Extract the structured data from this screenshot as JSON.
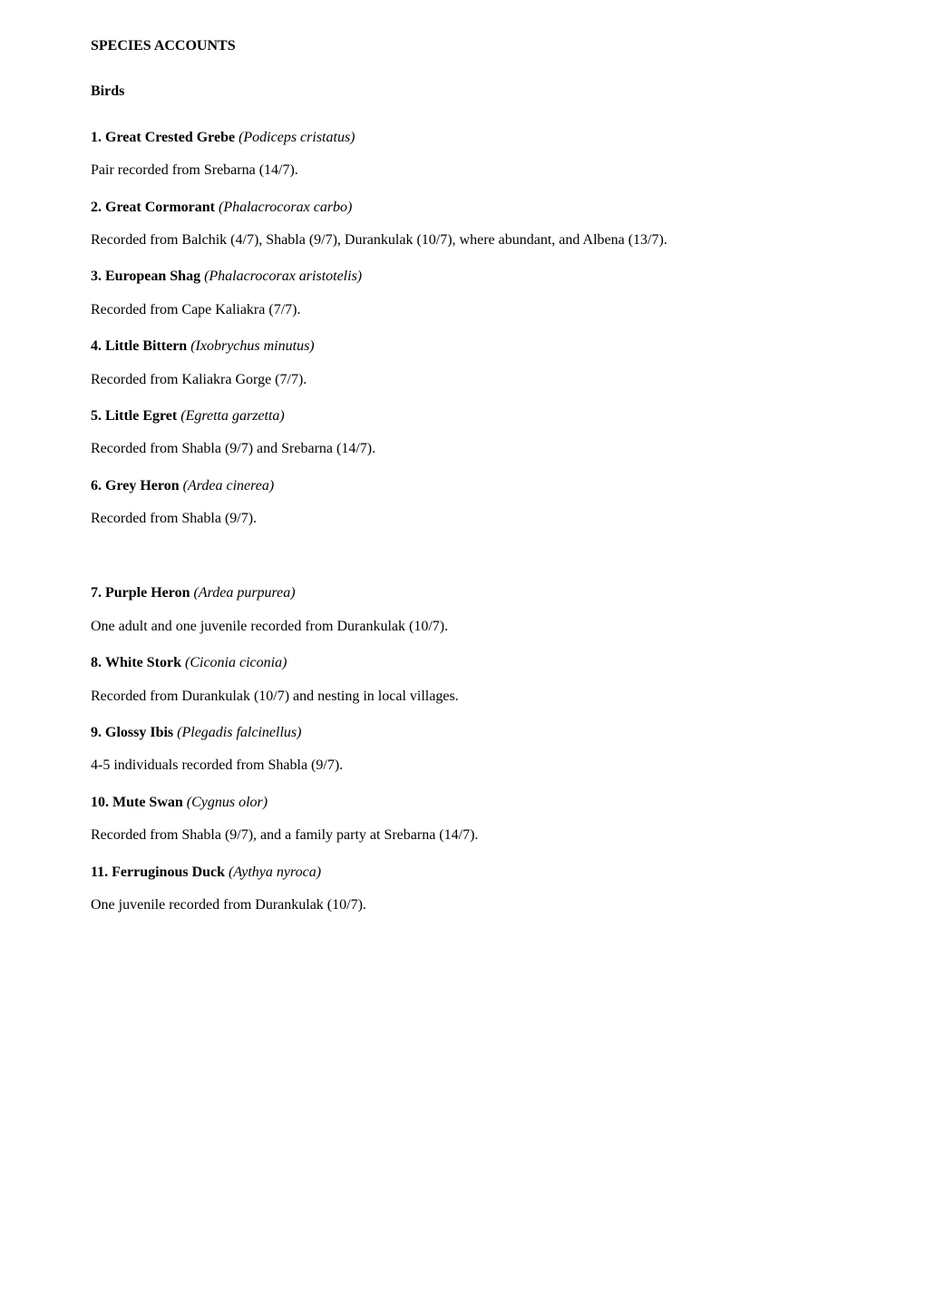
{
  "title": "SPECIES ACCOUNTS",
  "subsection": "Birds",
  "species": [
    {
      "num": "1.",
      "common": "Great Crested Grebe",
      "latin": "(Podiceps cristatus)",
      "desc": "Pair recorded from Srebarna (14/7)."
    },
    {
      "num": "2.",
      "common": "Great Cormorant",
      "latin": "(Phalacrocorax carbo)",
      "desc": "Recorded from Balchik (4/7), Shabla (9/7), Durankulak (10/7), where abundant, and Albena (13/7)."
    },
    {
      "num": "3.",
      "common": "European Shag",
      "latin": "(Phalacrocorax aristotelis)",
      "desc": "Recorded from Cape Kaliakra (7/7)."
    },
    {
      "num": "4.",
      "common": "Little Bittern",
      "latin": "(Ixobrychus minutus)",
      "desc": "Recorded from Kaliakra Gorge (7/7)."
    },
    {
      "num": "5.",
      "common": "Little Egret",
      "latin": "(Egretta garzetta)",
      "desc": "Recorded from Shabla (9/7) and Srebarna (14/7)."
    },
    {
      "num": "6.",
      "common": "Grey Heron ",
      "latin": "(Ardea cinerea)",
      "desc": "Recorded from Shabla (9/7)."
    },
    {
      "num": "7.",
      "common": "Purple Heron",
      "latin": "(Ardea purpurea)",
      "desc": "One adult and one juvenile recorded from Durankulak (10/7)."
    },
    {
      "num": "8.",
      "common": "White Stork",
      "latin": "(Ciconia ciconia)",
      "desc": "Recorded from Durankulak (10/7) and nesting in local villages."
    },
    {
      "num": "9.",
      "common": "Glossy Ibis",
      "latin": "(Plegadis falcinellus)",
      "desc": "4-5 individuals recorded from Shabla (9/7)."
    },
    {
      "num": "10.",
      "common": "Mute Swan",
      "latin": "(Cygnus olor)",
      "desc": "Recorded from Shabla (9/7), and a family party at Srebarna (14/7)."
    },
    {
      "num": "11.",
      "common": "Ferruginous Duck",
      "latin": "(Aythya nyroca)",
      "desc": "One juvenile recorded from Durankulak (10/7)."
    }
  ]
}
